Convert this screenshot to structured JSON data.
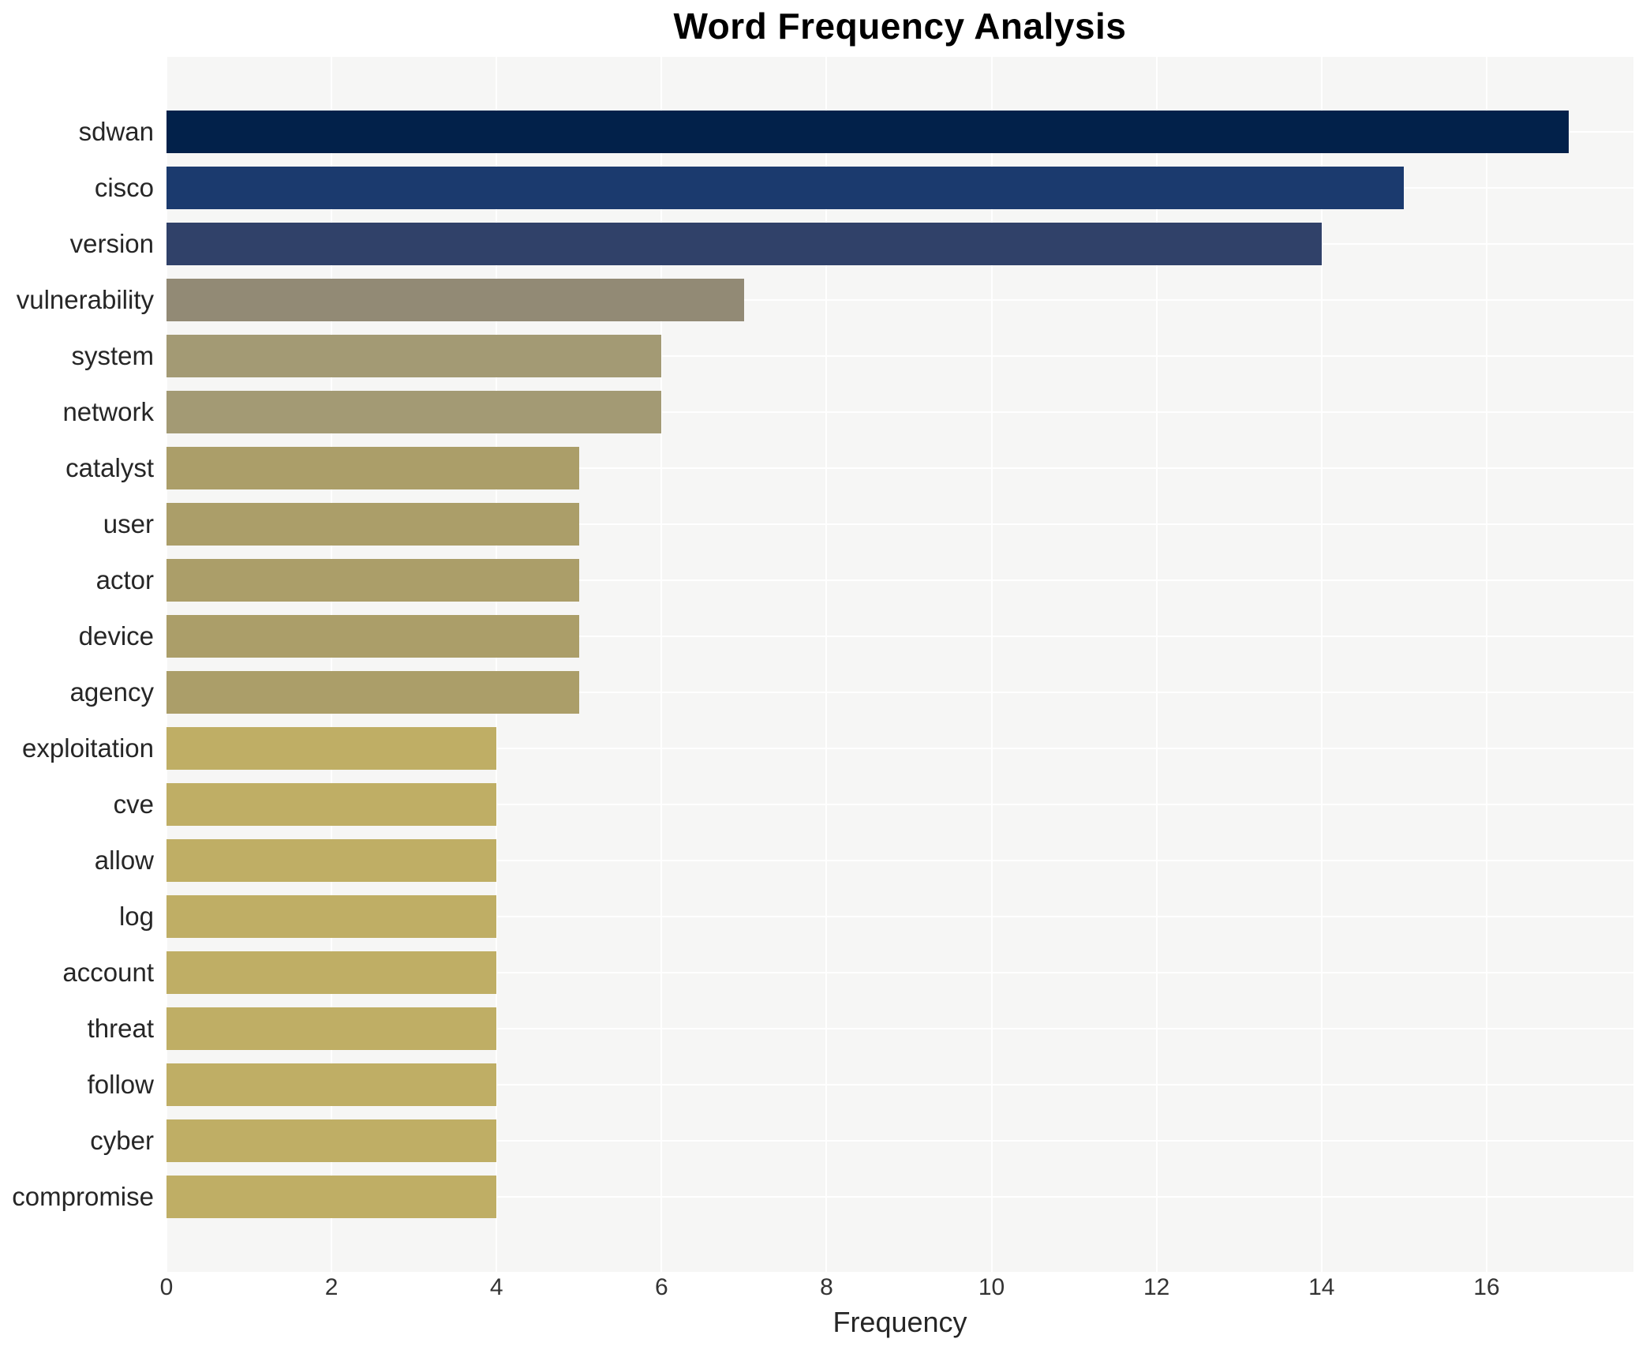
{
  "chart_data": {
    "type": "bar",
    "orientation": "horizontal",
    "title": "Word Frequency Analysis",
    "xlabel": "Frequency",
    "ylabel": "",
    "categories": [
      "sdwan",
      "cisco",
      "version",
      "vulnerability",
      "system",
      "network",
      "catalyst",
      "user",
      "actor",
      "device",
      "agency",
      "exploitation",
      "cve",
      "allow",
      "log",
      "account",
      "threat",
      "follow",
      "cyber",
      "compromise"
    ],
    "values": [
      17,
      15,
      14,
      7,
      6,
      6,
      5,
      5,
      5,
      5,
      5,
      4,
      4,
      4,
      4,
      4,
      4,
      4,
      4,
      4
    ],
    "bar_colors": [
      "#02214a",
      "#1b3a6e",
      "#304169",
      "#928a75",
      "#a39a74",
      "#a39a74",
      "#ab9e69",
      "#ab9e69",
      "#ab9e69",
      "#ab9e69",
      "#ab9e69",
      "#bfae65",
      "#bfae65",
      "#bfae65",
      "#bfae65",
      "#bfae65",
      "#bfae65",
      "#bfae65",
      "#bfae65",
      "#bfae65"
    ],
    "xticks": [
      0,
      2,
      4,
      6,
      8,
      10,
      12,
      14,
      16
    ],
    "xlim": [
      0,
      17.78
    ],
    "grid": true,
    "legend": "none",
    "plot_background": "#f6f6f5",
    "grid_color": "#ffffff",
    "text_color": "#262626",
    "title_color": "#000000"
  }
}
